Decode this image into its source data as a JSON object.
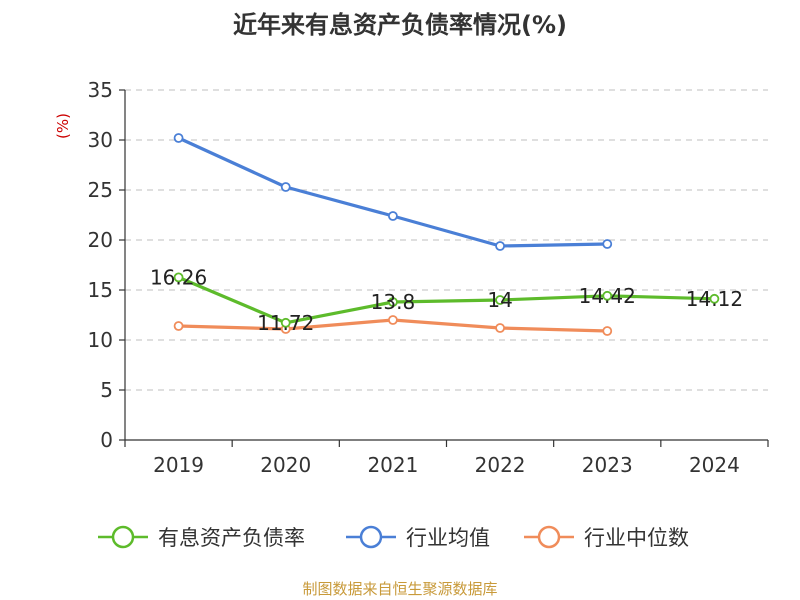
{
  "chart_data": {
    "type": "line",
    "title": "近年来有息资产负债率情况(%)",
    "ylabel": "(%)",
    "xlabel": "",
    "categories": [
      "2019",
      "2020",
      "2021",
      "2022",
      "2023",
      "2024"
    ],
    "ylim": [
      0,
      35
    ],
    "yticks": [
      0,
      5,
      10,
      15,
      20,
      25,
      30,
      35
    ],
    "grid": true,
    "legend_position": "bottom",
    "series": [
      {
        "name": "有息资产负债率",
        "color": "#5dbb2b",
        "values": [
          16.26,
          11.72,
          13.8,
          14,
          14.42,
          14.12
        ],
        "labels": [
          "16.26",
          "11.72",
          "13.8",
          "14",
          "14.42",
          "14.12"
        ]
      },
      {
        "name": "行业均值",
        "color": "#4a7fd6",
        "values": [
          30.2,
          25.3,
          22.4,
          19.4,
          19.6,
          null
        ]
      },
      {
        "name": "行业中位数",
        "color": "#f08c5a",
        "values": [
          11.4,
          11.1,
          12.0,
          11.2,
          10.9,
          null
        ]
      }
    ]
  },
  "footer": {
    "source": "制图数据来自恒生聚源数据库"
  }
}
